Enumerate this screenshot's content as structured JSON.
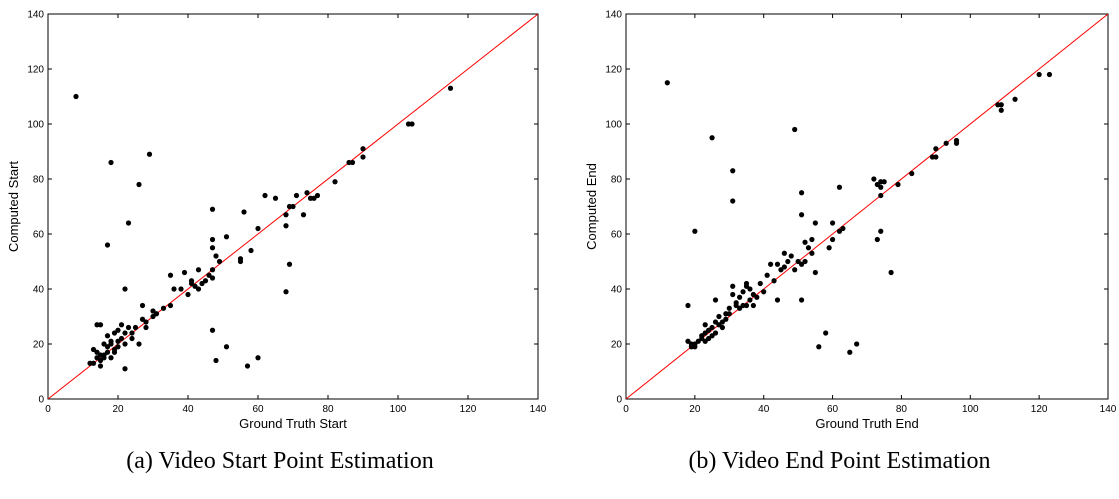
{
  "chart_data": [
    {
      "type": "scatter",
      "caption": "(a) Video Start Point Estimation",
      "xlabel": "Ground Truth Start",
      "ylabel": "Computed Start",
      "xlim": [
        0,
        140
      ],
      "ylim": [
        0,
        140
      ],
      "xticks": [
        0,
        20,
        40,
        60,
        80,
        100,
        120,
        140
      ],
      "yticks": [
        0,
        20,
        40,
        60,
        80,
        100,
        120,
        140
      ],
      "marker_color": "#000000",
      "reference_line": {
        "from": [
          0,
          0
        ],
        "to": [
          140,
          140
        ],
        "color": "#ff0000"
      },
      "points": [
        [
          8,
          110
        ],
        [
          115,
          113
        ],
        [
          103,
          100
        ],
        [
          104,
          100
        ],
        [
          90,
          91
        ],
        [
          90,
          88
        ],
        [
          87,
          86
        ],
        [
          86,
          86
        ],
        [
          82,
          79
        ],
        [
          77,
          74
        ],
        [
          76,
          73
        ],
        [
          75,
          73
        ],
        [
          74,
          75
        ],
        [
          73,
          67
        ],
        [
          71,
          74
        ],
        [
          70,
          70
        ],
        [
          69,
          70
        ],
        [
          68,
          67
        ],
        [
          68,
          63
        ],
        [
          69,
          49
        ],
        [
          68,
          39
        ],
        [
          65,
          73
        ],
        [
          60,
          62
        ],
        [
          58,
          54
        ],
        [
          56,
          68
        ],
        [
          55,
          51
        ],
        [
          55,
          50
        ],
        [
          51,
          59
        ],
        [
          49,
          50
        ],
        [
          47,
          69
        ],
        [
          47,
          58
        ],
        [
          47,
          55
        ],
        [
          48,
          52
        ],
        [
          47,
          47
        ],
        [
          46,
          45
        ],
        [
          47,
          44
        ],
        [
          45,
          43
        ],
        [
          44,
          42
        ],
        [
          43,
          47
        ],
        [
          43,
          40
        ],
        [
          42,
          41
        ],
        [
          41,
          43
        ],
        [
          41,
          42
        ],
        [
          40,
          38
        ],
        [
          39,
          46
        ],
        [
          38,
          40
        ],
        [
          36,
          40
        ],
        [
          35,
          45
        ],
        [
          35,
          34
        ],
        [
          33,
          33
        ],
        [
          31,
          31
        ],
        [
          30,
          32
        ],
        [
          30,
          30
        ],
        [
          29,
          89
        ],
        [
          28,
          28
        ],
        [
          28,
          26
        ],
        [
          27,
          34
        ],
        [
          27,
          29
        ],
        [
          26,
          78
        ],
        [
          26,
          20
        ],
        [
          25,
          26
        ],
        [
          24,
          24
        ],
        [
          24,
          22
        ],
        [
          23,
          64
        ],
        [
          23,
          26
        ],
        [
          22,
          40
        ],
        [
          22,
          24
        ],
        [
          22,
          20
        ],
        [
          22,
          11
        ],
        [
          21,
          27
        ],
        [
          21,
          22
        ],
        [
          20,
          25
        ],
        [
          20,
          21
        ],
        [
          20,
          19
        ],
        [
          19,
          24
        ],
        [
          19,
          17
        ],
        [
          19,
          18
        ],
        [
          18,
          86
        ],
        [
          18,
          21
        ],
        [
          18,
          20
        ],
        [
          18,
          15
        ],
        [
          17,
          56
        ],
        [
          17,
          23
        ],
        [
          17,
          19
        ],
        [
          17,
          17
        ],
        [
          16,
          20
        ],
        [
          16,
          15
        ],
        [
          15,
          27
        ],
        [
          15,
          16
        ],
        [
          15,
          14
        ],
        [
          14,
          27
        ],
        [
          14,
          15
        ],
        [
          13,
          13
        ],
        [
          12,
          13
        ],
        [
          13,
          18
        ],
        [
          14,
          17
        ],
        [
          15,
          12
        ],
        [
          16,
          16
        ],
        [
          47,
          25
        ],
        [
          48,
          14
        ],
        [
          51,
          19
        ],
        [
          57,
          12
        ],
        [
          60,
          15
        ],
        [
          62,
          74
        ]
      ]
    },
    {
      "type": "scatter",
      "caption": "(b) Video End Point Estimation",
      "xlabel": "Ground Truth End",
      "ylabel": "Computed End",
      "xlim": [
        0,
        140
      ],
      "ylim": [
        0,
        140
      ],
      "xticks": [
        0,
        20,
        40,
        60,
        80,
        100,
        120,
        140
      ],
      "yticks": [
        0,
        20,
        40,
        60,
        80,
        100,
        120,
        140
      ],
      "marker_color": "#000000",
      "reference_line": {
        "from": [
          0,
          0
        ],
        "to": [
          140,
          140
        ],
        "color": "#ff0000"
      },
      "points": [
        [
          12,
          115
        ],
        [
          120,
          118
        ],
        [
          123,
          118
        ],
        [
          113,
          109
        ],
        [
          109,
          107
        ],
        [
          108,
          107
        ],
        [
          109,
          105
        ],
        [
          96,
          94
        ],
        [
          96,
          93
        ],
        [
          93,
          93
        ],
        [
          90,
          91
        ],
        [
          90,
          88
        ],
        [
          89,
          88
        ],
        [
          83,
          82
        ],
        [
          79,
          78
        ],
        [
          75,
          79
        ],
        [
          74,
          79
        ],
        [
          73,
          78
        ],
        [
          74,
          77
        ],
        [
          72,
          80
        ],
        [
          74,
          74
        ],
        [
          74,
          61
        ],
        [
          73,
          58
        ],
        [
          77,
          46
        ],
        [
          62,
          77
        ],
        [
          63,
          62
        ],
        [
          62,
          61
        ],
        [
          60,
          64
        ],
        [
          60,
          58
        ],
        [
          59,
          55
        ],
        [
          55,
          64
        ],
        [
          54,
          58
        ],
        [
          53,
          55
        ],
        [
          54,
          53
        ],
        [
          52,
          50
        ],
        [
          51,
          75
        ],
        [
          51,
          67
        ],
        [
          51,
          49
        ],
        [
          50,
          50
        ],
        [
          49,
          98
        ],
        [
          49,
          47
        ],
        [
          48,
          52
        ],
        [
          47,
          50
        ],
        [
          46,
          53
        ],
        [
          45,
          47
        ],
        [
          44,
          49
        ],
        [
          43,
          43
        ],
        [
          42,
          49
        ],
        [
          41,
          45
        ],
        [
          40,
          39
        ],
        [
          39,
          42
        ],
        [
          38,
          37
        ],
        [
          37,
          38
        ],
        [
          36,
          40
        ],
        [
          36,
          36
        ],
        [
          35,
          42
        ],
        [
          35,
          41
        ],
        [
          34,
          39
        ],
        [
          34,
          34
        ],
        [
          33,
          33
        ],
        [
          32,
          35
        ],
        [
          32,
          34
        ],
        [
          31,
          83
        ],
        [
          31,
          72
        ],
        [
          31,
          41
        ],
        [
          31,
          38
        ],
        [
          30,
          33
        ],
        [
          30,
          31
        ],
        [
          29,
          31
        ],
        [
          29,
          29
        ],
        [
          28,
          28
        ],
        [
          28,
          26
        ],
        [
          27,
          30
        ],
        [
          27,
          27
        ],
        [
          26,
          36
        ],
        [
          26,
          28
        ],
        [
          26,
          24
        ],
        [
          25,
          95
        ],
        [
          25,
          26
        ],
        [
          25,
          23
        ],
        [
          24,
          25
        ],
        [
          24,
          22
        ],
        [
          23,
          27
        ],
        [
          23,
          24
        ],
        [
          23,
          21
        ],
        [
          22,
          23
        ],
        [
          22,
          22
        ],
        [
          21,
          21
        ],
        [
          20,
          61
        ],
        [
          20,
          20
        ],
        [
          20,
          19
        ],
        [
          19,
          20
        ],
        [
          19,
          19
        ],
        [
          18,
          34
        ],
        [
          18,
          21
        ],
        [
          51,
          36
        ],
        [
          52,
          57
        ],
        [
          55,
          46
        ],
        [
          56,
          19
        ],
        [
          58,
          24
        ],
        [
          65,
          17
        ],
        [
          67,
          20
        ],
        [
          35,
          34
        ],
        [
          33,
          37
        ],
        [
          37,
          34
        ],
        [
          44,
          36
        ],
        [
          46,
          48
        ]
      ]
    }
  ]
}
